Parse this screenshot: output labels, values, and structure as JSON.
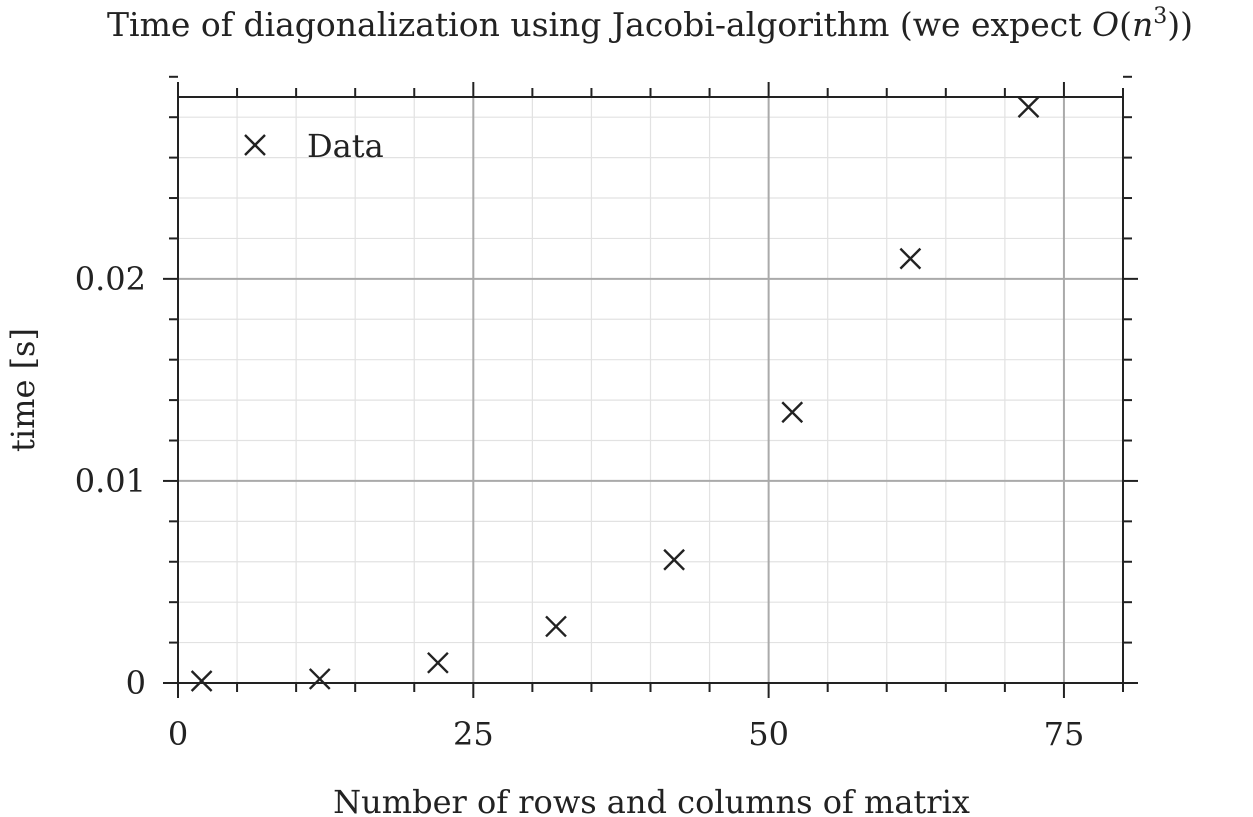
{
  "chart_data": {
    "type": "scatter",
    "title_main": "Time of diagonalization using Jacobi-algorithm (we expect ",
    "title_math_O": "O",
    "title_math_open": "(",
    "title_math_n": "n",
    "title_math_exp": "3",
    "title_close": "))",
    "xlabel": "Number of rows and columns of matrix",
    "ylabel": "time [s]",
    "xlim": [
      0,
      80
    ],
    "ylim": [
      0,
      0.029
    ],
    "x_major_ticks": [
      0,
      25,
      50,
      75
    ],
    "x_tick_labels": [
      "0",
      "25",
      "50",
      "75"
    ],
    "x_minor_step": 5,
    "y_major_ticks": [
      0,
      0.01,
      0.02
    ],
    "y_tick_labels": [
      "0",
      "0.01",
      "0.02"
    ],
    "y_minor_step": 0.002,
    "grid": true,
    "legend_position": "top-left",
    "series": [
      {
        "name": "Data",
        "marker": "x",
        "color": "#222222",
        "x": [
          2,
          12,
          22,
          32,
          42,
          52,
          62,
          72
        ],
        "y": [
          0.0001,
          0.0002,
          0.001,
          0.0028,
          0.0061,
          0.0134,
          0.021,
          0.0285
        ]
      }
    ]
  }
}
